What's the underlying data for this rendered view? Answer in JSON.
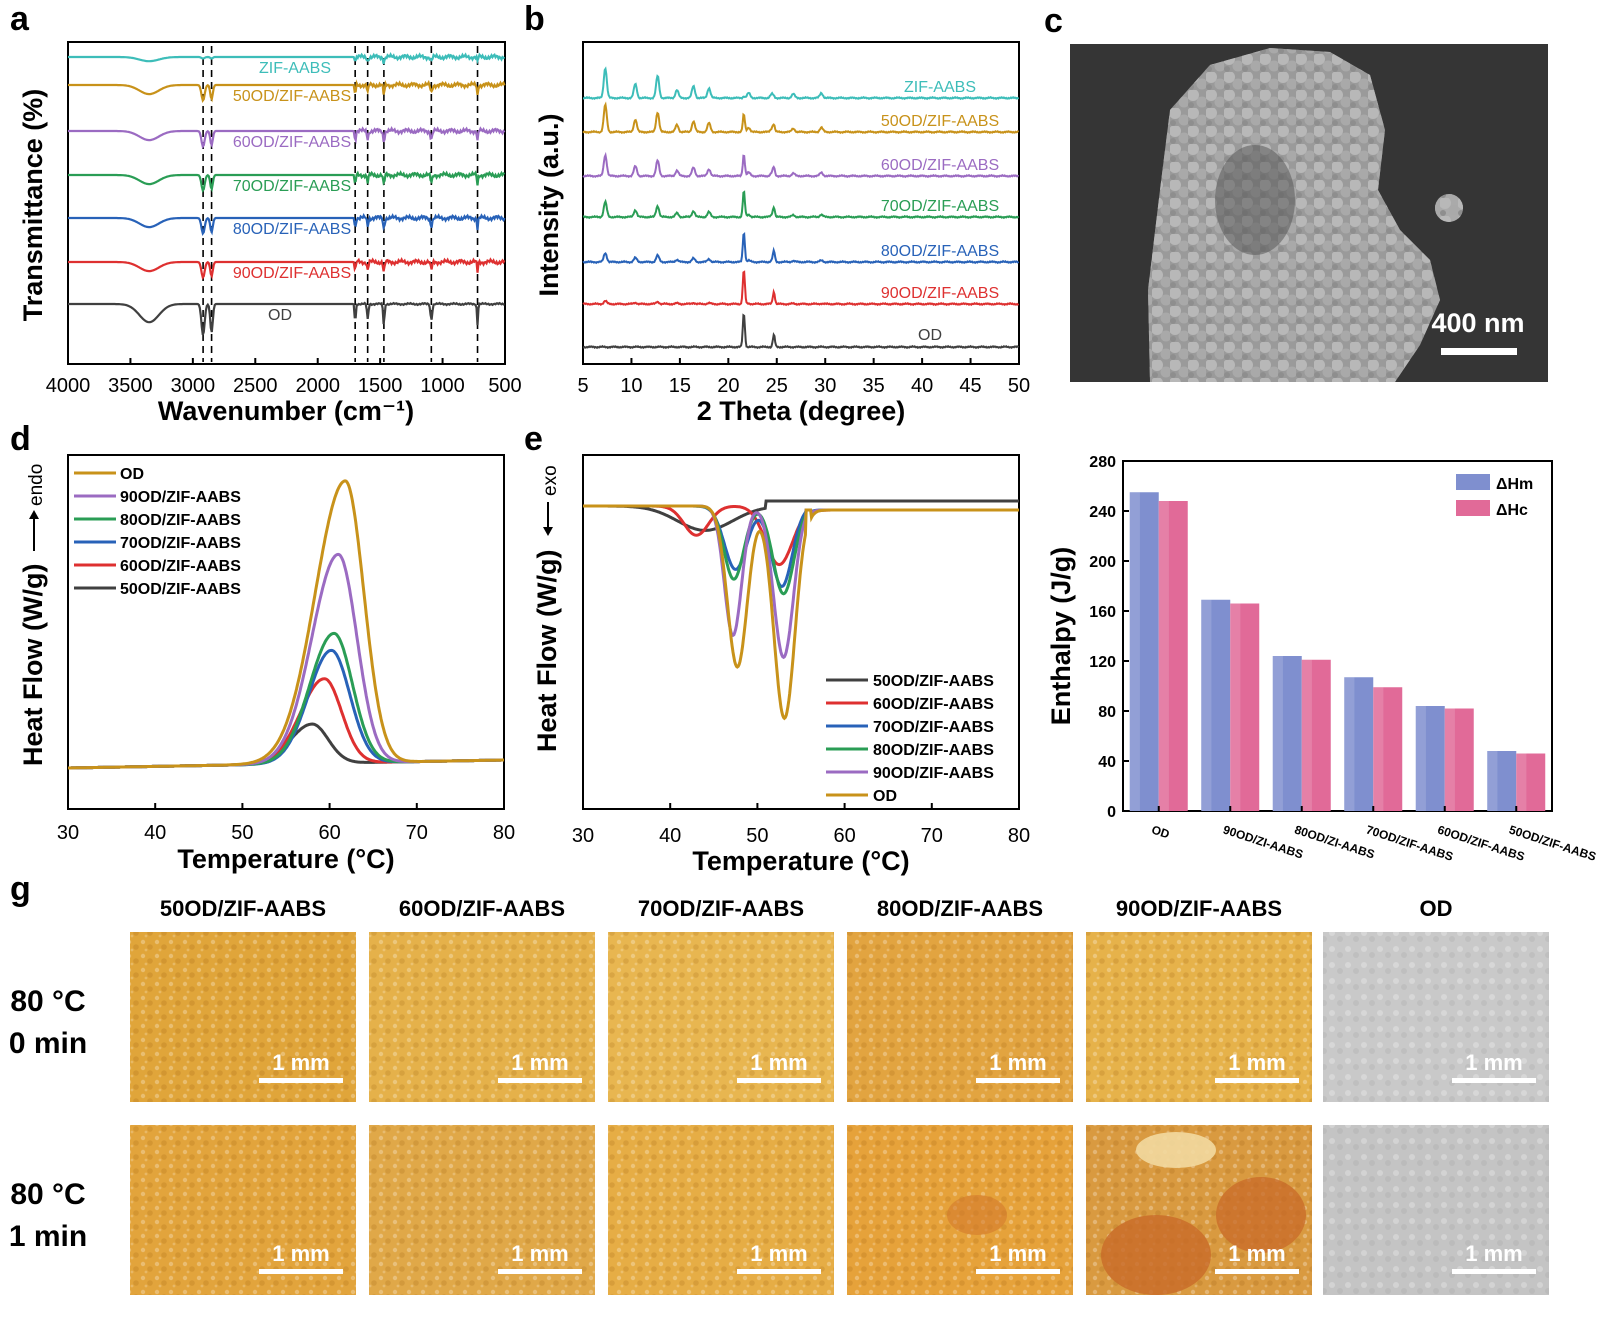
{
  "panels": {
    "a": {
      "label": "a",
      "xlabel": "Wavenumber (cm⁻¹)",
      "ylabel": "Transmittance (%)",
      "xticks": [
        "4000",
        "3500",
        "3000",
        "2500",
        "2000",
        "1500",
        "1000",
        "500"
      ],
      "dashed_lines_cm1": [
        2918,
        2850,
        1700,
        1600,
        1470,
        1090,
        720
      ],
      "series": [
        {
          "name": "ZIF-AABS",
          "color": "#3dbdb9"
        },
        {
          "name": "50OD/ZIF-AABS",
          "color": "#c8921a"
        },
        {
          "name": "60OD/ZIF-AABS",
          "color": "#9b6bc2"
        },
        {
          "name": "70OD/ZIF-AABS",
          "color": "#2a9d55"
        },
        {
          "name": "80OD/ZIF-AABS",
          "color": "#2862b8"
        },
        {
          "name": "90OD/ZIF-AABS",
          "color": "#de3030"
        },
        {
          "name": "OD",
          "color": "#404040"
        }
      ]
    },
    "b": {
      "label": "b",
      "xlabel": "2 Theta (degree)",
      "ylabel": "Intensity (a.u.)",
      "xticks": [
        "5",
        "10",
        "15",
        "20",
        "25",
        "30",
        "35",
        "40",
        "45",
        "50"
      ],
      "series": [
        {
          "name": "ZIF-AABS",
          "color": "#3dbdb9"
        },
        {
          "name": "50OD/ZIF-AABS",
          "color": "#c8921a"
        },
        {
          "name": "60OD/ZIF-AABS",
          "color": "#9b6bc2"
        },
        {
          "name": "70OD/ZIF-AABS",
          "color": "#2a9d55"
        },
        {
          "name": "80OD/ZIF-AABS",
          "color": "#2862b8"
        },
        {
          "name": "90OD/ZIF-AABS",
          "color": "#de3030"
        },
        {
          "name": "OD",
          "color": "#404040"
        }
      ]
    },
    "c": {
      "label": "c",
      "scale_bar": "400 nm"
    },
    "d": {
      "label": "d",
      "xlabel": "Temperature (°C)",
      "ylabel": "Heat Flow (W/g)",
      "ylabel_dir": "endo",
      "xticks": [
        "30",
        "40",
        "50",
        "60",
        "70",
        "80"
      ],
      "legend": [
        {
          "name": "OD",
          "color": "#c8921a"
        },
        {
          "name": "90OD/ZIF-AABS",
          "color": "#9b6bc2"
        },
        {
          "name": "80OD/ZIF-AABS",
          "color": "#2a9d55"
        },
        {
          "name": "70OD/ZIF-AABS",
          "color": "#2862b8"
        },
        {
          "name": "60OD/ZIF-AABS",
          "color": "#de3030"
        },
        {
          "name": "50OD/ZIF-AABS",
          "color": "#404040"
        }
      ]
    },
    "e": {
      "label": "e",
      "xlabel": "Temperature (°C)",
      "ylabel": "Heat Flow (W/g)",
      "ylabel_dir": "exo",
      "xticks": [
        "30",
        "40",
        "50",
        "60",
        "70",
        "80"
      ],
      "legend": [
        {
          "name": "50OD/ZIF-AABS",
          "color": "#404040"
        },
        {
          "name": "60OD/ZIF-AABS",
          "color": "#de3030"
        },
        {
          "name": "70OD/ZIF-AABS",
          "color": "#2862b8"
        },
        {
          "name": "80OD/ZIF-AABS",
          "color": "#2a9d55"
        },
        {
          "name": "90OD/ZIF-AABS",
          "color": "#9b6bc2"
        },
        {
          "name": "OD",
          "color": "#c8921a"
        }
      ]
    },
    "g": {
      "label": "g",
      "columns": [
        "50OD/ZIF-AABS",
        "60OD/ZIF-AABS",
        "70OD/ZIF-AABS",
        "80OD/ZIF-AABS",
        "90OD/ZIF-AABS",
        "OD"
      ],
      "rows": [
        {
          "line1": "80 °C",
          "line2": "0 min"
        },
        {
          "line1": "80 °C",
          "line2": "1 min"
        }
      ],
      "scale_bar": "1 mm",
      "tile_colors": [
        [
          "#e0a53a",
          "#e5b14a",
          "#e8b650",
          "#e2a440",
          "#e6b24a",
          "#c9c9c9"
        ],
        [
          "#e2a43c",
          "#e0a848",
          "#e6ad45",
          "#e6a23a",
          "#d99a40",
          "#c4c4c4"
        ]
      ]
    }
  },
  "chart_data": [
    {
      "panel": "d",
      "type": "line",
      "title": "",
      "xlabel": "Temperature (°C)",
      "ylabel": "Heat Flow (W/g) → endo",
      "xlim": [
        30,
        80
      ],
      "series": [
        {
          "name": "OD",
          "peak_temp": 61.8,
          "peak_height": 1.0,
          "width": 3.0,
          "onset": 55
        },
        {
          "name": "90OD/ZIF-AABS",
          "peak_temp": 61.0,
          "peak_height": 0.74,
          "width": 3.0,
          "onset": 55
        },
        {
          "name": "80OD/ZIF-AABS",
          "peak_temp": 60.5,
          "peak_height": 0.46,
          "width": 3.0,
          "onset": 55
        },
        {
          "name": "70OD/ZIF-AABS",
          "peak_temp": 60.2,
          "peak_height": 0.4,
          "width": 3.0,
          "onset": 55
        },
        {
          "name": "60OD/ZIF-AABS",
          "peak_temp": 59.4,
          "peak_height": 0.3,
          "width": 2.8,
          "onset": 54
        },
        {
          "name": "50OD/ZIF-AABS",
          "peak_temp": 58.0,
          "peak_height": 0.14,
          "width": 2.6,
          "onset": 53
        }
      ]
    },
    {
      "panel": "e",
      "type": "line",
      "title": "",
      "xlabel": "Temperature (°C)",
      "ylabel": "Heat Flow (W/g) ← exo",
      "xlim": [
        30,
        80
      ],
      "series": [
        {
          "name": "50OD/ZIF-AABS",
          "dips": [
            [
              44.5,
              0.1,
              4.0
            ],
            [
              48.0,
              0.02,
              1.5
            ]
          ],
          "step_to": -0.02
        },
        {
          "name": "60OD/ZIF-AABS",
          "dips": [
            [
              43.0,
              0.12,
              2.0
            ],
            [
              52.5,
              0.24,
              2.2
            ]
          ]
        },
        {
          "name": "70OD/ZIF-AABS",
          "dips": [
            [
              47.5,
              0.26,
              1.8
            ],
            [
              52.8,
              0.33,
              1.7
            ]
          ]
        },
        {
          "name": "80OD/ZIF-AABS",
          "dips": [
            [
              47.3,
              0.3,
              1.6
            ],
            [
              53.0,
              0.36,
              1.7
            ]
          ]
        },
        {
          "name": "90OD/ZIF-AABS",
          "dips": [
            [
              47.2,
              0.53,
              1.4
            ],
            [
              53.0,
              0.62,
              1.6
            ]
          ]
        },
        {
          "name": "OD",
          "dips": [
            [
              47.7,
              0.66,
              1.6
            ],
            [
              53.1,
              0.87,
              1.7
            ]
          ]
        }
      ]
    },
    {
      "panel": "f",
      "type": "bar",
      "title": "",
      "xlabel": "",
      "ylabel": "Enthalpy (J/g)",
      "ylim": [
        0,
        280
      ],
      "yticks": [
        0,
        40,
        80,
        120,
        160,
        200,
        240,
        280
      ],
      "categories": [
        "OD",
        "90OD/ZI-AABS",
        "80OD/ZI-AABS",
        "70OD/ZIF-AABS",
        "60OD/ZIF-AABS",
        "50OD/ZIF-AABS"
      ],
      "series": [
        {
          "name": "ΔHm",
          "color": "#7f8fcf",
          "values": [
            255,
            169,
            124,
            107,
            84,
            48
          ]
        },
        {
          "name": "ΔHc",
          "color": "#e16a98",
          "values": [
            248,
            166,
            121,
            99,
            82,
            46
          ]
        }
      ],
      "legend": "top-right"
    }
  ]
}
